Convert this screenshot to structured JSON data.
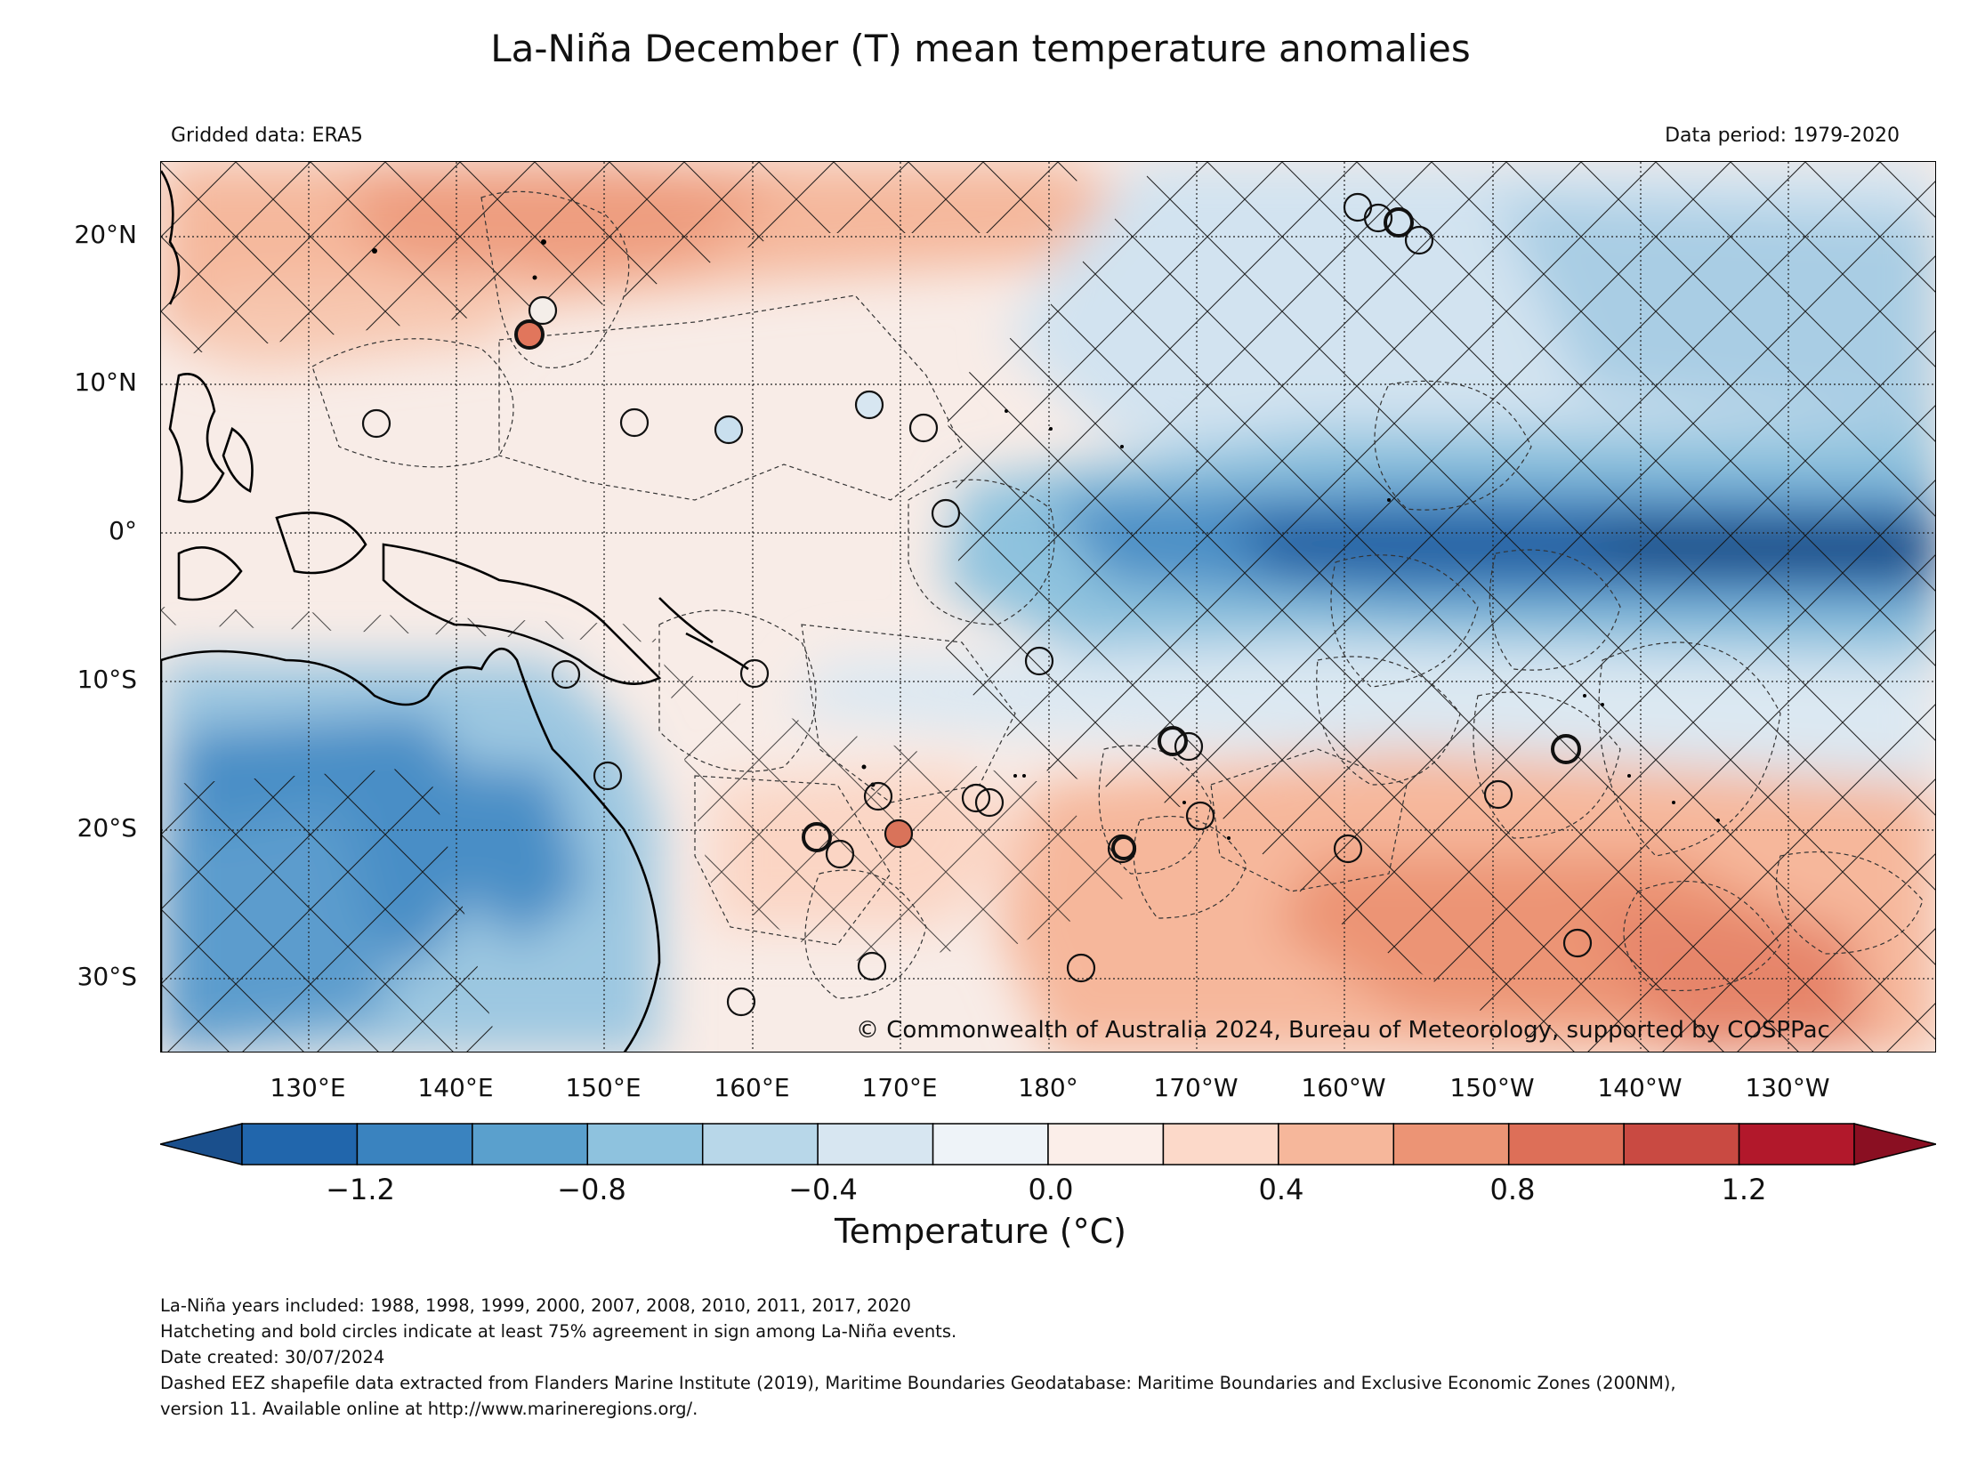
{
  "title": "La-Niña December (T) mean temperature anomalies",
  "gridded_label": "Gridded data: ERA5",
  "period_label": "Data period: 1979-2020",
  "copyright": "© Commonwealth of Australia 2024, Bureau of Meteorology, supported by COSPPac",
  "map": {
    "lat_labels": [
      "20°N",
      "10°N",
      "0°",
      "10°S",
      "20°S",
      "30°S"
    ],
    "lon_labels": [
      "130°E",
      "140°E",
      "150°E",
      "160°E",
      "170°E",
      "180°",
      "170°W",
      "160°W",
      "150°W",
      "140°W",
      "130°W"
    ],
    "lon_range": [
      120,
      240
    ],
    "lat_range": [
      -35,
      25
    ],
    "hatching": "yes",
    "eez_boundaries": "dashed"
  },
  "colorbar": {
    "label": "Temperature (°C)",
    "ticks": [
      "−1.2",
      "−0.8",
      "−0.4",
      "0.0",
      "0.4",
      "0.8",
      "1.2"
    ],
    "bounds": [
      -1.4,
      1.4
    ],
    "step": 0.2,
    "colors": [
      "#2166ac",
      "#3a83bf",
      "#5aa0cd",
      "#8ec2de",
      "#b8d7e9",
      "#d7e6f1",
      "#eef3f8",
      "#fbeee9",
      "#fcd9c9",
      "#f6b79b",
      "#ec9475",
      "#dd6f58",
      "#c94a42",
      "#b2182b"
    ],
    "under_color": "#1a4f8c",
    "over_color": "#8a0f22"
  },
  "footnotes": [
    "La-Niña years included: 1988, 1998, 1999, 2000, 2007, 2008, 2010, 2011, 2017, 2020",
    "Hatcheting and bold circles indicate at least 75% agreement in sign among La-Niña events.",
    "Date created: 30/07/2024",
    "Dashed EEZ shapefile data extracted from Flanders Marine Institute (2019), Maritime Boundaries Geodatabase: Maritime Boundaries and Exclusive Economic Zones (200NM),",
    "version 11. Available online at http://www.marineregions.org/."
  ]
}
